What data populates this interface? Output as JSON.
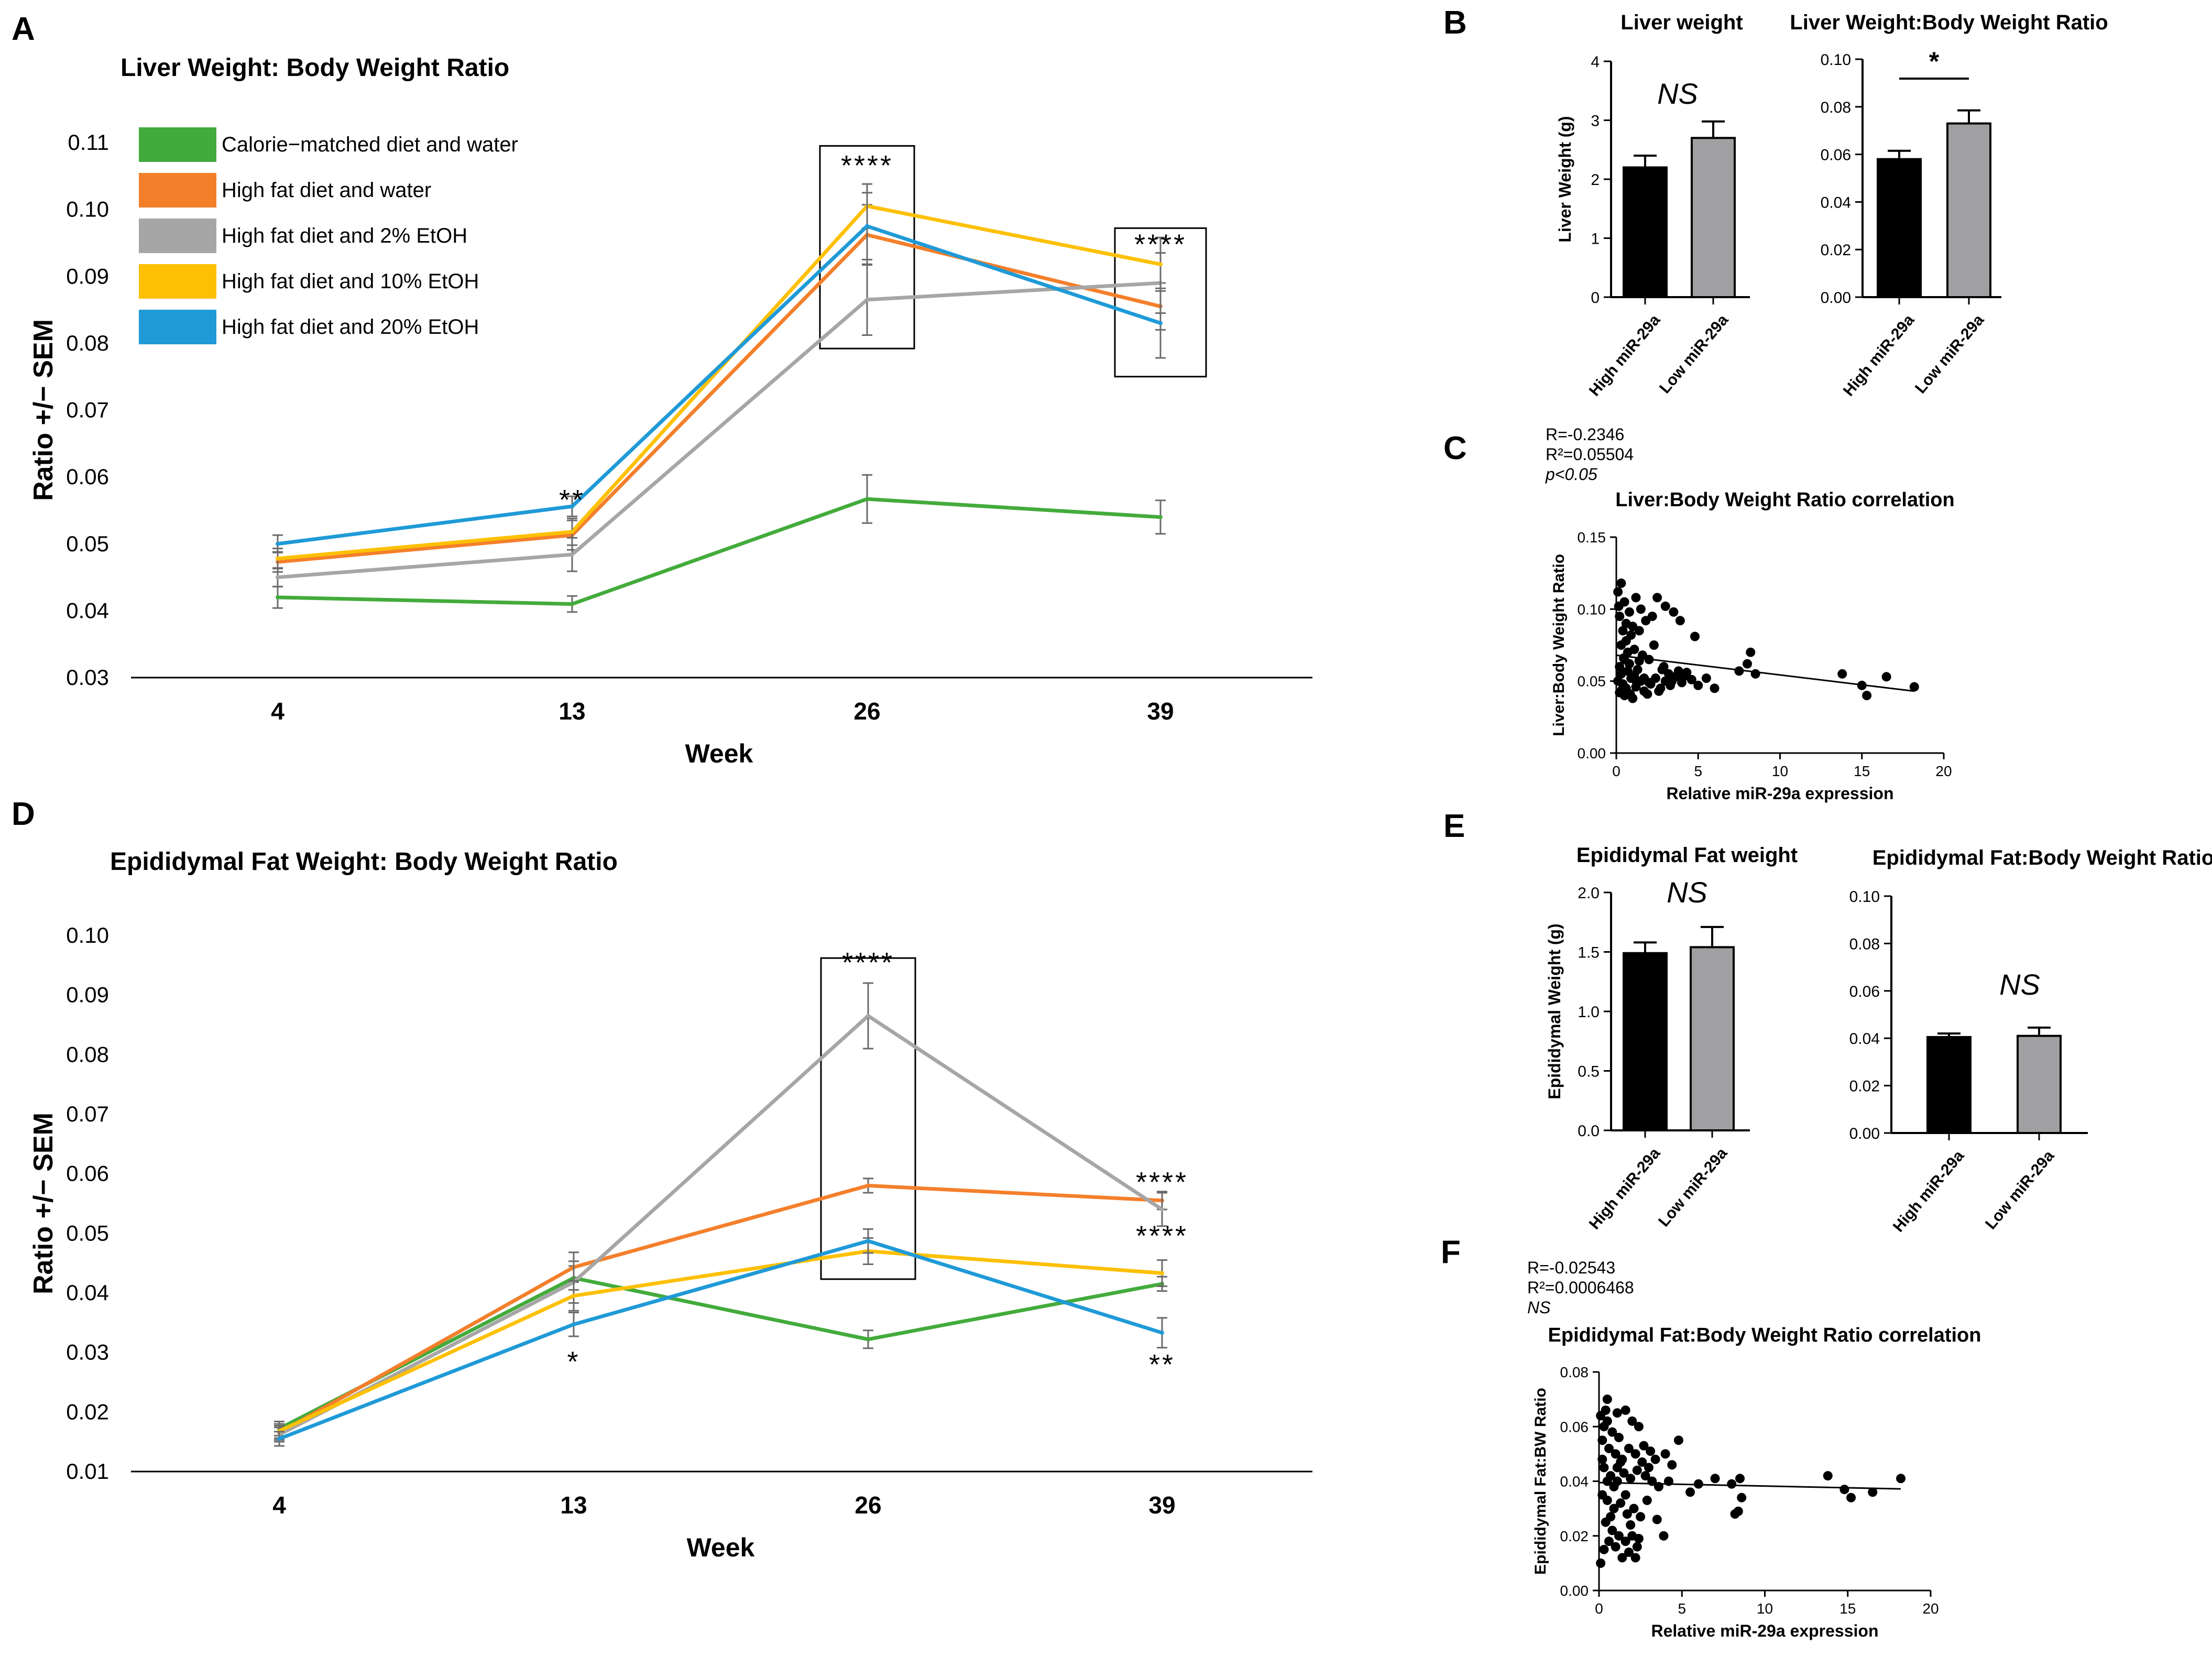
{
  "colors": {
    "green": "#43ab3b",
    "orange": "#f47f2b",
    "gray": "#a6a6a6",
    "yellow": "#fdc004",
    "blue": "#1f9ad7",
    "black": "#000000",
    "bargray": "#a0a0a2",
    "errorbar": "#6b6b6b"
  },
  "panels": {
    "A": "A",
    "B": "B",
    "C": "C",
    "D": "D",
    "E": "E",
    "F": "F"
  },
  "legend": [
    {
      "name": "Calorie−matched diet and water",
      "color": "green"
    },
    {
      "name": "High fat diet and water",
      "color": "orange"
    },
    {
      "name": "High fat diet and 2% EtOH",
      "color": "gray"
    },
    {
      "name": "High fat diet and 10% EtOH",
      "color": "yellow"
    },
    {
      "name": "High fat diet and 20% EtOH",
      "color": "blue"
    }
  ],
  "chart_data": [
    {
      "id": "A",
      "type": "line",
      "title": "Liver Weight: Body Weight Ratio",
      "xlabel": "Week",
      "ylabel": "Ratio +/− SEM",
      "categories": [
        "4",
        "13",
        "26",
        "39"
      ],
      "ylim": [
        0.03,
        0.11
      ],
      "yticks": [
        "0.03",
        "0.04",
        "0.05",
        "0.06",
        "0.07",
        "0.08",
        "0.09",
        "0.10",
        "0.11"
      ],
      "series": [
        {
          "name": "Calorie−matched diet and water",
          "color": "green",
          "values": [
            0.042,
            0.041,
            0.0567,
            0.054
          ],
          "err": [
            0.0016,
            0.0012,
            0.0036,
            0.0025
          ]
        },
        {
          "name": "High fat diet and water",
          "color": "orange",
          "values": [
            0.0473,
            0.0513,
            0.0962,
            0.0855
          ],
          "err": [
            0.0015,
            0.0022,
            0.0045,
            0.0035
          ]
        },
        {
          "name": "High fat diet and 2% EtOH",
          "color": "gray",
          "values": [
            0.045,
            0.0484,
            0.0865,
            0.089
          ],
          "err": [
            0.0014,
            0.0025,
            0.0053,
            0.0045
          ]
        },
        {
          "name": "High fat diet and 10% EtOH",
          "color": "yellow",
          "values": [
            0.0478,
            0.0518,
            0.1005,
            0.0918
          ],
          "err": [
            0.0015,
            0.002,
            0.0033,
            0.004
          ]
        },
        {
          "name": "High fat diet and 20% EtOH",
          "color": "blue",
          "values": [
            0.05,
            0.0556,
            0.0975,
            0.083
          ],
          "err": [
            0.0013,
            0.0015,
            0.005,
            0.0052
          ]
        }
      ],
      "annotations": [
        {
          "text": "**",
          "category": "13",
          "y": 0.0575
        },
        {
          "text": "****",
          "category": "26",
          "y": 0.1075
        },
        {
          "text": "****",
          "category": "39",
          "y": 0.0957
        }
      ],
      "boxes": [
        {
          "category": "26",
          "y_low": 0.0792,
          "y_high": 0.1095
        },
        {
          "category": "39",
          "y_low": 0.075,
          "y_high": 0.0972
        }
      ]
    },
    {
      "id": "B1",
      "type": "bar",
      "title": "Liver weight",
      "ylabel": "Liver Weight (g)",
      "categories": [
        "High miR-29a",
        "Low miR-29a"
      ],
      "values": [
        2.2,
        2.7
      ],
      "err": [
        0.2,
        0.28
      ],
      "ylim": [
        0,
        4
      ],
      "yticks": [
        "0",
        "1",
        "2",
        "3",
        "4"
      ],
      "annotation": "NS"
    },
    {
      "id": "B2",
      "type": "bar",
      "title": "Liver Weight:Body Weight Ratio",
      "ylabel": "",
      "categories": [
        "High miR-29a",
        "Low miR-29a"
      ],
      "values": [
        0.058,
        0.073
      ],
      "err": [
        0.0035,
        0.0055
      ],
      "ylim": [
        0,
        0.1
      ],
      "yticks": [
        "0.00",
        "0.02",
        "0.04",
        "0.06",
        "0.08",
        "0.10"
      ],
      "annotation": "*"
    },
    {
      "id": "C",
      "type": "scatter",
      "title": "Liver:Body Weight Ratio correlation",
      "xlabel": "Relative miR-29a expression",
      "ylabel": "Liver:Body Weight Ratio",
      "stats": [
        "R=-0.2346",
        "R²=0.05504",
        "p<0.05"
      ],
      "xlim": [
        0,
        20
      ],
      "ylim": [
        0,
        0.15
      ],
      "xticks": [
        "0",
        "5",
        "10",
        "15",
        "20"
      ],
      "yticks": [
        "0.00",
        "0.05",
        "0.10",
        "0.15"
      ],
      "fit": [
        [
          0,
          0.068
        ],
        [
          18.2,
          0.043
        ]
      ],
      "points": [
        [
          0.1,
          0.112
        ],
        [
          0.3,
          0.118
        ],
        [
          0.5,
          0.105
        ],
        [
          0.8,
          0.098
        ],
        [
          1.2,
          0.108
        ],
        [
          1.5,
          0.1
        ],
        [
          0.2,
          0.095
        ],
        [
          0.6,
          0.09
        ],
        [
          1.0,
          0.088
        ],
        [
          1.8,
          0.092
        ],
        [
          0.4,
          0.085
        ],
        [
          0.9,
          0.082
        ],
        [
          1.4,
          0.085
        ],
        [
          2.2,
          0.095
        ],
        [
          2.5,
          0.108
        ],
        [
          3.0,
          0.102
        ],
        [
          3.5,
          0.098
        ],
        [
          0.3,
          0.075
        ],
        [
          0.7,
          0.07
        ],
        [
          1.1,
          0.072
        ],
        [
          1.6,
          0.068
        ],
        [
          0.5,
          0.065
        ],
        [
          0.2,
          0.06
        ],
        [
          0.8,
          0.062
        ],
        [
          1.3,
          0.058
        ],
        [
          2.0,
          0.065
        ],
        [
          2.8,
          0.058
        ],
        [
          3.2,
          0.055
        ],
        [
          0.1,
          0.05
        ],
        [
          0.4,
          0.048
        ],
        [
          0.6,
          0.045
        ],
        [
          0.9,
          0.052
        ],
        [
          1.2,
          0.046
        ],
        [
          1.5,
          0.05
        ],
        [
          1.7,
          0.043
        ],
        [
          2.1,
          0.048
        ],
        [
          2.4,
          0.052
        ],
        [
          2.7,
          0.045
        ],
        [
          3.0,
          0.05
        ],
        [
          3.3,
          0.047
        ],
        [
          3.6,
          0.053
        ],
        [
          4.0,
          0.049
        ],
        [
          4.3,
          0.056
        ],
        [
          4.6,
          0.051
        ],
        [
          5.0,
          0.047
        ],
        [
          0.2,
          0.042
        ],
        [
          0.5,
          0.04
        ],
        [
          1.0,
          0.038
        ],
        [
          1.9,
          0.041
        ],
        [
          2.6,
          0.043
        ],
        [
          5.5,
          0.052
        ],
        [
          6.0,
          0.045
        ],
        [
          8.0,
          0.062
        ],
        [
          8.2,
          0.07
        ],
        [
          8.5,
          0.055
        ],
        [
          7.5,
          0.057
        ],
        [
          13.8,
          0.055
        ],
        [
          15.0,
          0.047
        ],
        [
          15.3,
          0.04
        ],
        [
          16.5,
          0.053
        ],
        [
          18.2,
          0.046
        ],
        [
          0.3,
          0.055
        ],
        [
          0.7,
          0.057
        ],
        [
          1.1,
          0.054
        ],
        [
          3.8,
          0.057
        ],
        [
          4.8,
          0.081
        ],
        [
          3.9,
          0.092
        ],
        [
          2.3,
          0.075
        ],
        [
          0.6,
          0.078
        ],
        [
          1.4,
          0.064
        ],
        [
          2.9,
          0.06
        ],
        [
          0.15,
          0.102
        ],
        [
          0.45,
          0.066
        ],
        [
          1.7,
          0.052
        ],
        [
          2.0,
          0.049
        ],
        [
          3.4,
          0.05
        ],
        [
          4.1,
          0.053
        ],
        [
          0.35,
          0.044
        ],
        [
          0.85,
          0.041
        ],
        [
          1.25,
          0.049
        ]
      ]
    },
    {
      "id": "D",
      "type": "line",
      "title": "Epididymal Fat Weight: Body Weight Ratio",
      "xlabel": "Week",
      "ylabel": "Ratio +/− SEM",
      "categories": [
        "4",
        "13",
        "26",
        "39"
      ],
      "ylim": [
        0.01,
        0.1
      ],
      "yticks": [
        "0.01",
        "0.02",
        "0.03",
        "0.04",
        "0.05",
        "0.06",
        "0.07",
        "0.08",
        "0.09",
        "0.10"
      ],
      "series": [
        {
          "name": "Calorie−matched diet and water",
          "color": "green",
          "values": [
            0.0172,
            0.0425,
            0.0322,
            0.0415
          ],
          "err": [
            0.0012,
            0.002,
            0.0015,
            0.0012
          ]
        },
        {
          "name": "High fat diet and water",
          "color": "orange",
          "values": [
            0.0165,
            0.0443,
            0.058,
            0.0555
          ],
          "err": [
            0.0012,
            0.0025,
            0.0012,
            0.0015
          ]
        },
        {
          "name": "High fat diet and 2% EtOH",
          "color": "gray",
          "values": [
            0.0162,
            0.0418,
            0.0865,
            0.054
          ],
          "err": [
            0.0012,
            0.0035,
            0.0055,
            0.0028
          ]
        },
        {
          "name": "High fat diet and 10% EtOH",
          "color": "yellow",
          "values": [
            0.0168,
            0.0395,
            0.047,
            0.0433
          ],
          "err": [
            0.0012,
            0.0025,
            0.0022,
            0.0022
          ]
        },
        {
          "name": "High fat diet and 20% EtOH",
          "color": "blue",
          "values": [
            0.0155,
            0.0347,
            0.0487,
            0.0333
          ],
          "err": [
            0.0012,
            0.002,
            0.002,
            0.0025
          ]
        }
      ],
      "annotations": [
        {
          "text": "*",
          "category": "13",
          "y": 0.0295
        },
        {
          "text": "****",
          "category": "26",
          "y": 0.0965
        },
        {
          "text": "****",
          "category": "39",
          "y": 0.0596
        },
        {
          "text": "****",
          "category": "39",
          "y": 0.0506
        },
        {
          "text": "**",
          "category": "39",
          "y": 0.029
        }
      ],
      "boxes": [
        {
          "category": "26",
          "y_low": 0.0423,
          "y_high": 0.0962
        }
      ]
    },
    {
      "id": "E1",
      "type": "bar",
      "title": "Epididymal Fat weight",
      "ylabel": "Epididymal Weight (g)",
      "categories": [
        "High miR-29a",
        "Low miR-29a"
      ],
      "values": [
        1.49,
        1.54
      ],
      "err": [
        0.09,
        0.17
      ],
      "ylim": [
        0,
        2.0
      ],
      "yticks": [
        "0.0",
        "0.5",
        "1.0",
        "1.5",
        "2.0"
      ],
      "annotation": "NS"
    },
    {
      "id": "E2",
      "type": "bar",
      "title": "Epididymal Fat:Body Weight Ratio",
      "ylabel": "",
      "categories": [
        "High miR-29a",
        "Low miR-29a"
      ],
      "values": [
        0.0405,
        0.041
      ],
      "err": [
        0.0015,
        0.0035
      ],
      "ylim": [
        0,
        0.1
      ],
      "yticks": [
        "0.00",
        "0.02",
        "0.04",
        "0.06",
        "0.08",
        "0.10"
      ],
      "annotation": "NS"
    },
    {
      "id": "F",
      "type": "scatter",
      "title": "Epididymal Fat:Body Weight Ratio correlation",
      "xlabel": "Relative miR-29a expression",
      "ylabel": "Epididymal Fat:BW Ratio",
      "stats": [
        "R=-0.02543",
        "R²=0.0006468",
        "NS"
      ],
      "xlim": [
        0,
        20
      ],
      "ylim": [
        0,
        0.08
      ],
      "xticks": [
        "0",
        "5",
        "10",
        "15",
        "20"
      ],
      "yticks": [
        "0.00",
        "0.02",
        "0.04",
        "0.06",
        "0.08"
      ],
      "fit": [
        [
          0,
          0.0395
        ],
        [
          18.2,
          0.0372
        ]
      ],
      "points": [
        [
          0.1,
          0.064
        ],
        [
          0.3,
          0.06
        ],
        [
          0.5,
          0.062
        ],
        [
          0.8,
          0.058
        ],
        [
          1.2,
          0.056
        ],
        [
          1.6,
          0.066
        ],
        [
          2.0,
          0.062
        ],
        [
          2.4,
          0.06
        ],
        [
          0.2,
          0.055
        ],
        [
          0.6,
          0.052
        ],
        [
          1.0,
          0.05
        ],
        [
          1.4,
          0.048
        ],
        [
          1.8,
          0.052
        ],
        [
          2.2,
          0.05
        ],
        [
          2.6,
          0.047
        ],
        [
          3.0,
          0.045
        ],
        [
          3.4,
          0.048
        ],
        [
          4.0,
          0.05
        ],
        [
          4.8,
          0.055
        ],
        [
          0.3,
          0.045
        ],
        [
          0.7,
          0.042
        ],
        [
          1.1,
          0.04
        ],
        [
          1.5,
          0.043
        ],
        [
          1.9,
          0.041
        ],
        [
          2.3,
          0.044
        ],
        [
          2.8,
          0.042
        ],
        [
          3.2,
          0.04
        ],
        [
          3.6,
          0.038
        ],
        [
          4.2,
          0.04
        ],
        [
          0.2,
          0.035
        ],
        [
          0.5,
          0.033
        ],
        [
          0.9,
          0.03
        ],
        [
          1.3,
          0.032
        ],
        [
          1.7,
          0.028
        ],
        [
          2.1,
          0.03
        ],
        [
          2.5,
          0.027
        ],
        [
          0.4,
          0.025
        ],
        [
          0.8,
          0.022
        ],
        [
          1.2,
          0.02
        ],
        [
          1.6,
          0.018
        ],
        [
          2.0,
          0.02
        ],
        [
          2.4,
          0.019
        ],
        [
          0.1,
          0.01
        ],
        [
          0.3,
          0.015
        ],
        [
          0.6,
          0.018
        ],
        [
          1.0,
          0.016
        ],
        [
          1.4,
          0.012
        ],
        [
          1.8,
          0.014
        ],
        [
          2.2,
          0.012
        ],
        [
          3.5,
          0.026
        ],
        [
          3.9,
          0.02
        ],
        [
          5.5,
          0.036
        ],
        [
          6.0,
          0.039
        ],
        [
          7.0,
          0.041
        ],
        [
          8.0,
          0.039
        ],
        [
          8.2,
          0.028
        ],
        [
          8.4,
          0.029
        ],
        [
          8.5,
          0.041
        ],
        [
          8.6,
          0.034
        ],
        [
          13.8,
          0.042
        ],
        [
          14.8,
          0.037
        ],
        [
          15.2,
          0.034
        ],
        [
          16.5,
          0.036
        ],
        [
          18.2,
          0.041
        ],
        [
          0.5,
          0.07
        ],
        [
          0.4,
          0.066
        ],
        [
          1.1,
          0.065
        ],
        [
          2.7,
          0.053
        ],
        [
          3.1,
          0.051
        ],
        [
          1.3,
          0.047
        ],
        [
          0.9,
          0.038
        ],
        [
          1.6,
          0.035
        ],
        [
          0.2,
          0.048
        ],
        [
          2.9,
          0.033
        ],
        [
          4.4,
          0.046
        ],
        [
          0.7,
          0.027
        ],
        [
          1.9,
          0.024
        ],
        [
          2.3,
          0.016
        ],
        [
          1.1,
          0.045
        ],
        [
          0.5,
          0.04
        ]
      ]
    }
  ]
}
